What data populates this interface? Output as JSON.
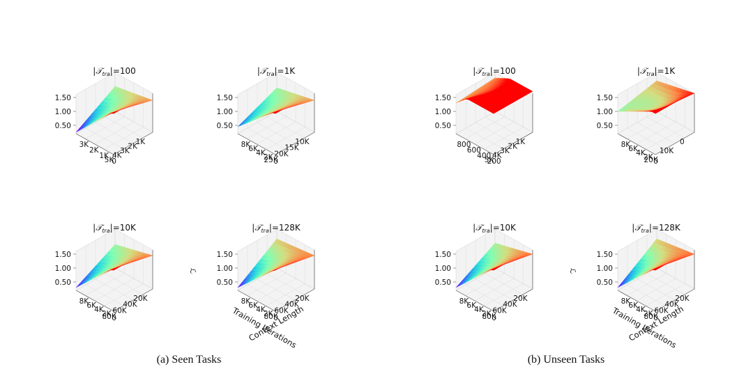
{
  "captions": {
    "seen": "(a) Seen Tasks",
    "unseen": "(b) Unseen Tasks"
  },
  "colormap": [
    "#8000ff",
    "#2c7ef7",
    "#2adddd",
    "#80ffb4",
    "#d4dd80",
    "#ff8040",
    "#ff0000"
  ],
  "axis_titles": {
    "x": "Training Iterations",
    "y": "Context Length",
    "z": "ℒ"
  },
  "chart_data": [
    {
      "id": "seen-100",
      "type": "surface3d",
      "title_var": "𝒯",
      "title_sub": "tra",
      "title_value": "100",
      "z_ticks": [
        "1.50",
        "1.00",
        "0.50"
      ],
      "zlim": [
        0.2,
        1.6
      ],
      "x_ticks": [
        "1K",
        "2K",
        "3K",
        "4K",
        "5K"
      ],
      "y_ticks": [
        "0",
        "1K",
        "2K",
        "3K"
      ],
      "corners": [
        1.1,
        0.25,
        1.35,
        1.75
      ],
      "dip": 0.05,
      "show_axis_titles": false
    },
    {
      "id": "seen-1k",
      "type": "surface3d",
      "title_var": "𝒯",
      "title_sub": "tra",
      "title_value": "1K",
      "z_ticks": [
        "1.50",
        "1.00",
        "0.50"
      ],
      "zlim": [
        0.2,
        1.6
      ],
      "x_ticks": [
        "10K",
        "15K",
        "20K",
        "25K"
      ],
      "y_ticks": [
        "0",
        "2K",
        "4K",
        "6K",
        "8K"
      ],
      "corners": [
        1.05,
        0.45,
        1.35,
        1.75
      ],
      "dip": 0.05,
      "show_axis_titles": false
    },
    {
      "id": "unseen-100",
      "type": "surface3d",
      "title_var": "𝒯",
      "title_sub": "tra",
      "title_value": "100",
      "z_ticks": [
        "1.50",
        "1.00",
        "0.50"
      ],
      "zlim": [
        0.2,
        1.6
      ],
      "x_ticks": [
        "1K",
        "2K",
        "3K",
        "4K",
        "5K"
      ],
      "y_ticks": [
        "200",
        "400",
        "600",
        "800"
      ],
      "corners": [
        1.4,
        1.3,
        2.1,
        2.6
      ],
      "dip": 0.15,
      "show_axis_titles": false
    },
    {
      "id": "unseen-1k",
      "type": "surface3d",
      "title_var": "𝒯",
      "title_sub": "tra",
      "title_value": "1K",
      "z_ticks": [
        "1.50",
        "1.00",
        "0.50"
      ],
      "zlim": [
        0.2,
        1.6
      ],
      "x_ticks": [
        "0",
        "10K",
        "20K"
      ],
      "y_ticks": [
        "0",
        "2K",
        "4K",
        "6K",
        "8K"
      ],
      "corners": [
        1.3,
        1.0,
        1.6,
        1.75
      ],
      "dip": 0.25,
      "show_axis_titles": false
    },
    {
      "id": "seen-10k",
      "type": "surface3d",
      "title_var": "𝒯",
      "title_sub": "tra",
      "title_value": "10K",
      "z_ticks": [
        "1.50",
        "1.00",
        "0.50"
      ],
      "zlim": [
        0.2,
        1.6
      ],
      "x_ticks": [
        "20K",
        "40K",
        "60K",
        "80K"
      ],
      "y_ticks": [
        "0",
        "2K",
        "4K",
        "6K",
        "8K"
      ],
      "corners": [
        1.05,
        0.3,
        1.4,
        1.75
      ],
      "dip": 0.05,
      "show_axis_titles": false
    },
    {
      "id": "seen-128k",
      "type": "surface3d",
      "title_var": "𝒯",
      "title_sub": "tra",
      "title_value": "128K",
      "z_ticks": [
        "1.50",
        "1.00",
        "0.50"
      ],
      "zlim": [
        0.2,
        1.6
      ],
      "x_ticks": [
        "20K",
        "40K",
        "60K",
        "80K"
      ],
      "y_ticks": [
        "0",
        "2K",
        "4K",
        "6K",
        "8K"
      ],
      "corners": [
        1.25,
        0.3,
        1.4,
        1.7
      ],
      "dip": 0.05,
      "show_axis_titles": true
    },
    {
      "id": "unseen-10k",
      "type": "surface3d",
      "title_var": "𝒯",
      "title_sub": "tra",
      "title_value": "10K",
      "z_ticks": [
        "1.50",
        "1.00",
        "0.50"
      ],
      "zlim": [
        0.2,
        1.6
      ],
      "x_ticks": [
        "20K",
        "40K",
        "60K",
        "80K"
      ],
      "y_ticks": [
        "0",
        "2K",
        "4K",
        "6K",
        "8K"
      ],
      "corners": [
        1.1,
        0.3,
        1.45,
        1.75
      ],
      "dip": 0.05,
      "show_axis_titles": false
    },
    {
      "id": "unseen-128k",
      "type": "surface3d",
      "title_var": "𝒯",
      "title_sub": "tra",
      "title_value": "128K",
      "z_ticks": [
        "1.50",
        "1.00",
        "0.50"
      ],
      "zlim": [
        0.2,
        1.6
      ],
      "x_ticks": [
        "20K",
        "40K",
        "60K",
        "80K"
      ],
      "y_ticks": [
        "0",
        "2K",
        "4K",
        "6K",
        "8K"
      ],
      "corners": [
        1.25,
        0.3,
        1.45,
        1.75
      ],
      "dip": 0.05,
      "show_axis_titles": true
    }
  ]
}
